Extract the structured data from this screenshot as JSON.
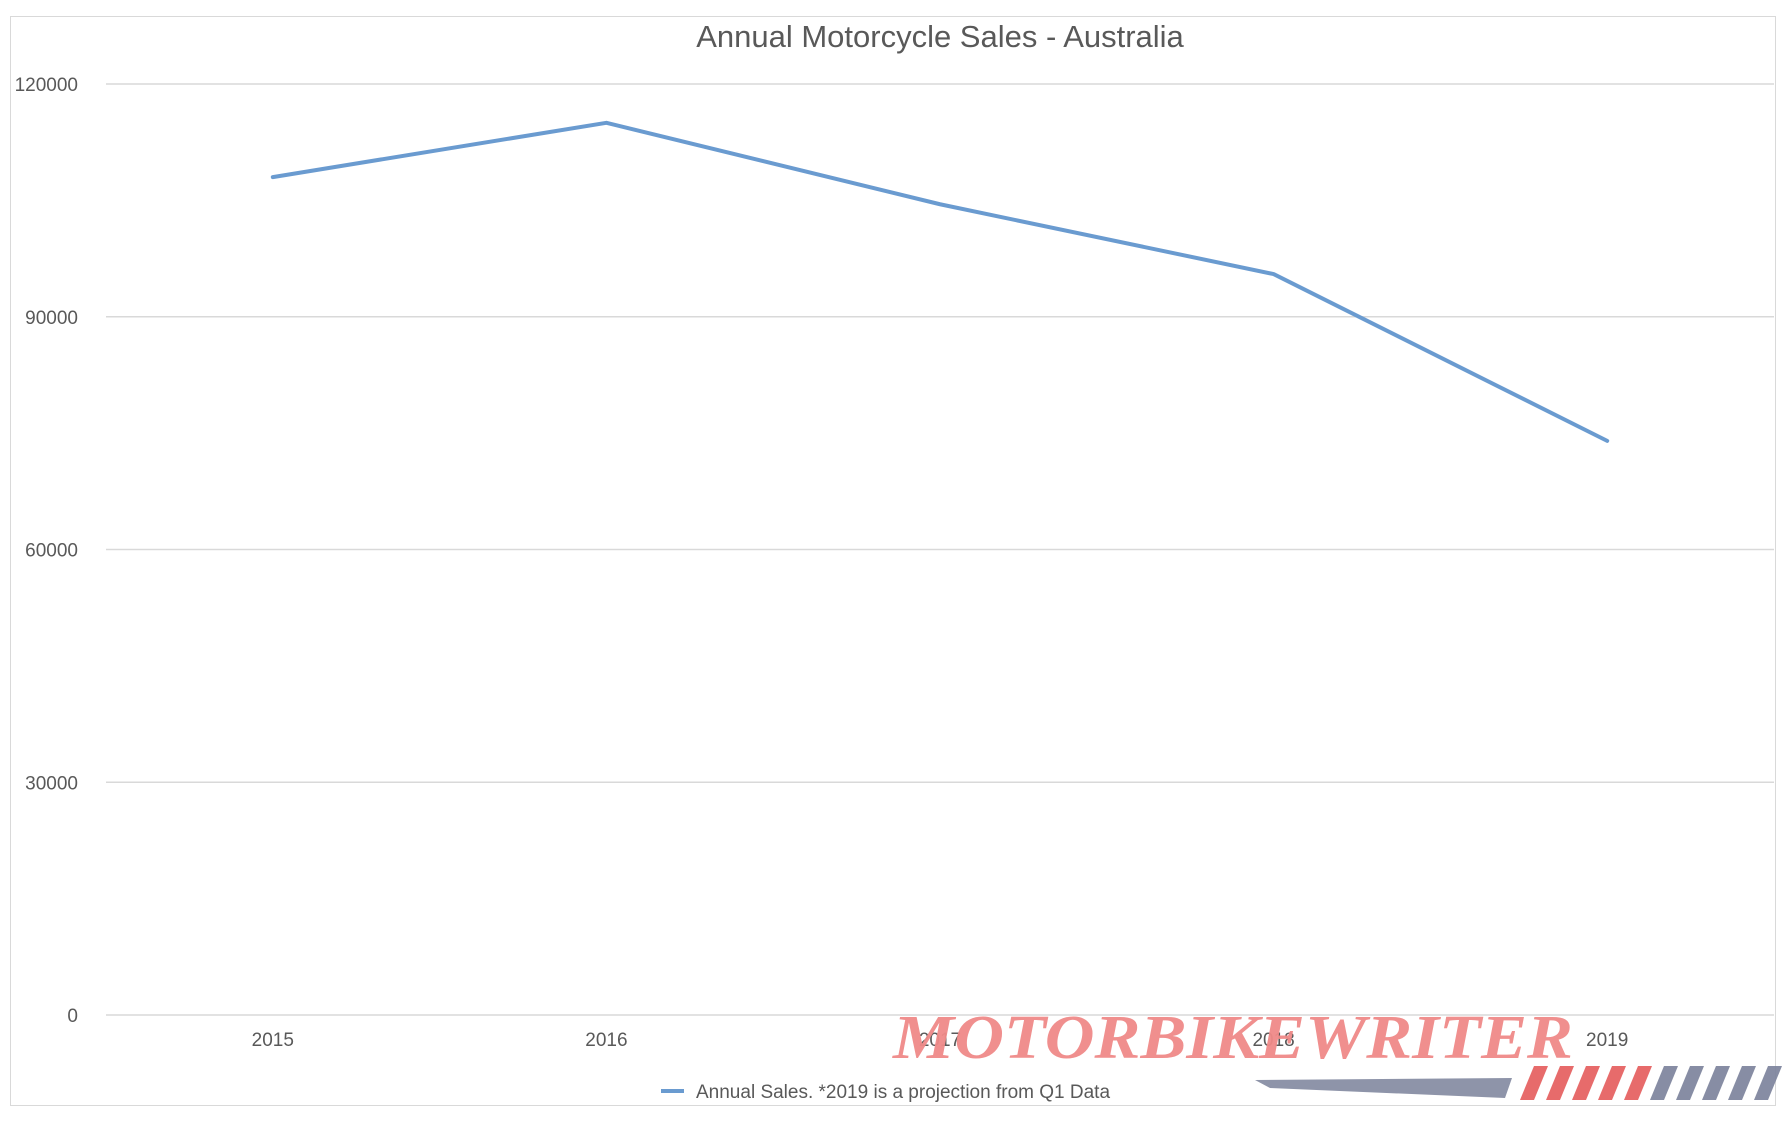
{
  "chart_data": {
    "type": "line",
    "title": "Annual Motorcycle Sales - Australia",
    "categories": [
      "2015",
      "2016",
      "2017",
      "2018",
      "2019"
    ],
    "series": [
      {
        "name": "Annual Sales. *2019 is a projection from Q1 Data",
        "values": [
          108000,
          115000,
          104500,
          95500,
          74000
        ],
        "color": "#6a9bd0"
      }
    ],
    "y_ticks": [
      "0",
      "30000",
      "60000",
      "90000",
      "120000"
    ],
    "ylim": [
      0,
      120000
    ],
    "grid": true,
    "legend_position": "bottom"
  },
  "watermark": {
    "text": "MotorbikeWriter",
    "colors": {
      "text": "#f08a88",
      "stripe_light": "#e45b5b",
      "stripe_dark": "#7a819a"
    }
  }
}
